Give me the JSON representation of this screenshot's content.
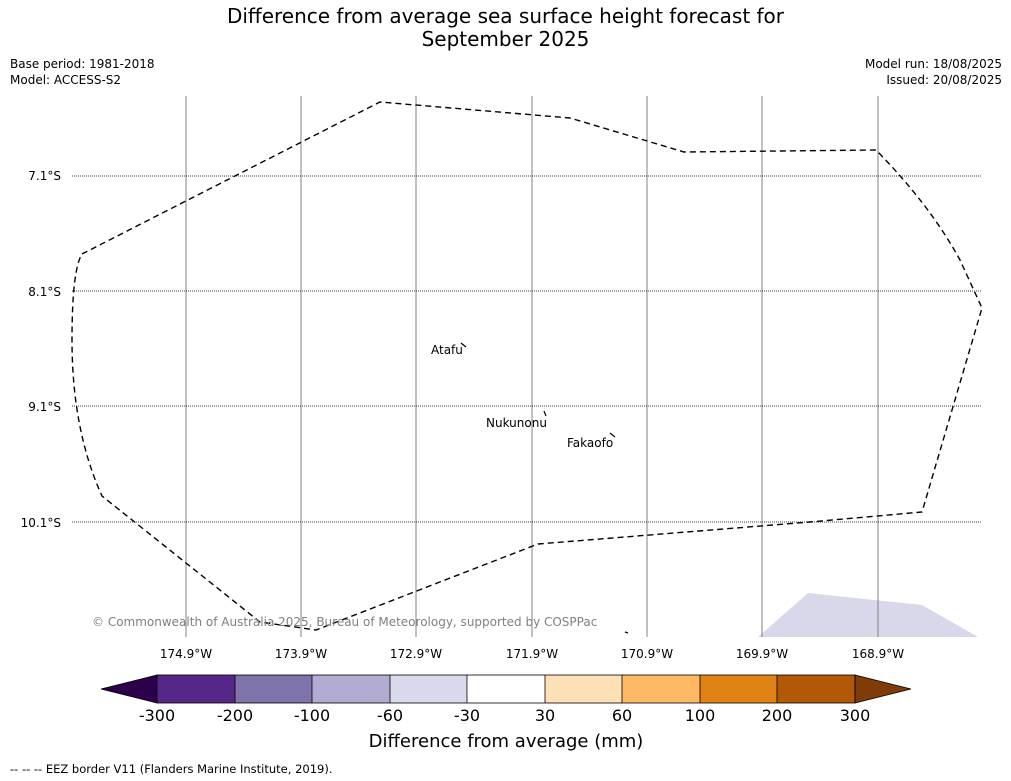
{
  "title": {
    "line1": "Difference from average sea surface height forecast for",
    "line2": "September 2025"
  },
  "meta": {
    "base_period": "Base period: 1981-2018",
    "model": "Model: ACCESS-S2",
    "model_run": "Model run: 18/08/2025",
    "issued": "Issued: 20/08/2025"
  },
  "map": {
    "lat_labels": [
      "7.1°S",
      "8.1°S",
      "9.1°S",
      "10.1°S"
    ],
    "lon_labels": [
      "174.9°W",
      "173.9°W",
      "172.9°W",
      "171.9°W",
      "170.9°W",
      "169.9°W",
      "168.9°W"
    ],
    "places": [
      "Atafu",
      "Nukunonu",
      "Fakaofo"
    ],
    "copyright": "© Commonwealth of Australia 2025, Bureau of Meteorology, supported by COSPPac",
    "shading_color": "#d8d8ea",
    "eez_style": "dashed"
  },
  "colorbar": {
    "title": "Difference from average (mm)",
    "tick_labels": [
      "-300",
      "-200",
      "-100",
      "-60",
      "-30",
      "30",
      "60",
      "100",
      "200",
      "300"
    ],
    "colors": [
      "#2d004b",
      "#542788",
      "#8073ac",
      "#b2abd2",
      "#d8daeb",
      "#ffffff",
      "#fee0b6",
      "#fdb863",
      "#e08214",
      "#b35806",
      "#7f3b08"
    ]
  },
  "footer": {
    "legend": "--  --  -- EEZ border V11 (Flanders Marine Institute, 2019)."
  }
}
